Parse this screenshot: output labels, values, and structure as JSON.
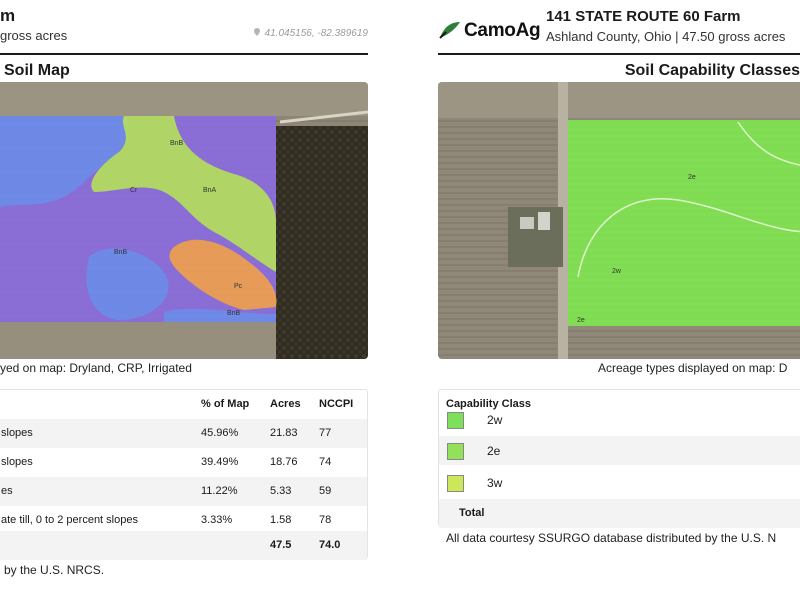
{
  "left": {
    "title": "m",
    "subtitle": "gross acres",
    "coordinates": "41.045156, -82.389619",
    "section_title": "Soil Map",
    "map_labels": [
      "BnB",
      "Cr",
      "BnA",
      "BnB",
      "Pc",
      "BnB"
    ],
    "acreage_note": "yed on map: Dryland, CRP, Irrigated",
    "table": {
      "headers": {
        "name": "",
        "pct": "% of Map",
        "acres": "Acres",
        "nccpi": "NCCPI"
      },
      "rows": [
        {
          "name": "slopes",
          "pct": "45.96%",
          "acres": "21.83",
          "nccpi": "77"
        },
        {
          "name": "slopes",
          "pct": "39.49%",
          "acres": "18.76",
          "nccpi": "74"
        },
        {
          "name": "es",
          "pct": "11.22%",
          "acres": "5.33",
          "nccpi": "59"
        },
        {
          "name": "ate till, 0 to 2 percent slopes",
          "pct": "3.33%",
          "acres": "1.58",
          "nccpi": "78"
        }
      ],
      "total": {
        "name": "",
        "pct": "",
        "acres": "47.5",
        "nccpi": "74.0"
      }
    },
    "footer": "by the U.S. NRCS."
  },
  "right": {
    "logo_text": "CamoAg",
    "farm_title": "141 STATE ROUTE 60 Farm",
    "farm_subtitle": "Ashland County, Ohio | 47.50 gross acres",
    "section_title": "Soil Capability Classes",
    "map_labels": [
      "2e",
      "2w",
      "2e"
    ],
    "acreage_note": "Acreage types displayed on map: D",
    "table": {
      "header": "Capability Class",
      "rows": [
        {
          "label": "2w",
          "color": "#7ee05a"
        },
        {
          "label": "2e",
          "color": "#93e05a"
        },
        {
          "label": "3w",
          "color": "#cce85a"
        }
      ],
      "total_label": "Total"
    },
    "footer": "All data courtesy SSURGO database distributed by the U.S. N"
  },
  "colors": {
    "soil_purple": "#8a6be0",
    "soil_blue": "#6b8ce8",
    "soil_green": "#b4e05a",
    "soil_orange": "#f0a04a",
    "capability_green": "#7ee84e",
    "logo_green": "#2e7d3a"
  }
}
